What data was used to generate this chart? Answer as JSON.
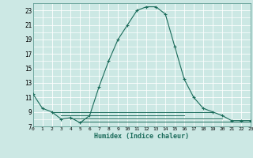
{
  "title": "",
  "xlabel": "Humidex (Indice chaleur)",
  "bg_color": "#cce8e4",
  "grid_color": "#ffffff",
  "line_color": "#1a6b5a",
  "x_main": [
    0,
    1,
    2,
    3,
    4,
    5,
    6,
    7,
    8,
    9,
    10,
    11,
    12,
    13,
    14,
    15,
    16,
    17,
    18,
    19,
    20,
    21,
    22,
    23
  ],
  "y_main": [
    11.5,
    9.5,
    9.0,
    8.0,
    8.2,
    7.5,
    8.5,
    12.5,
    16.0,
    19.0,
    21.0,
    23.0,
    23.5,
    23.5,
    22.5,
    18.0,
    13.5,
    11.0,
    9.5,
    9.0,
    8.5,
    7.8,
    7.8,
    7.8
  ],
  "extra_lines": [
    {
      "x": [
        2,
        19
      ],
      "y": [
        9.0,
        9.0
      ]
    },
    {
      "x": [
        3,
        16
      ],
      "y": [
        8.5,
        8.5
      ]
    },
    {
      "x": [
        4,
        20
      ],
      "y": [
        8.1,
        8.1
      ]
    },
    {
      "x": [
        5,
        23
      ],
      "y": [
        7.7,
        7.7
      ]
    }
  ],
  "xlim": [
    0,
    23
  ],
  "ylim": [
    7,
    24
  ],
  "yticks": [
    7,
    9,
    11,
    13,
    15,
    17,
    19,
    21,
    23
  ],
  "xticks": [
    0,
    1,
    2,
    3,
    4,
    5,
    6,
    7,
    8,
    9,
    10,
    11,
    12,
    13,
    14,
    15,
    16,
    17,
    18,
    19,
    20,
    21,
    22,
    23
  ],
  "xtick_labels": [
    "0",
    "1",
    "2",
    "3",
    "4",
    "5",
    "6",
    "7",
    "8",
    "9",
    "10",
    "11",
    "12",
    "13",
    "14",
    "15",
    "16",
    "17",
    "18",
    "19",
    "20",
    "21",
    "22",
    "23"
  ]
}
